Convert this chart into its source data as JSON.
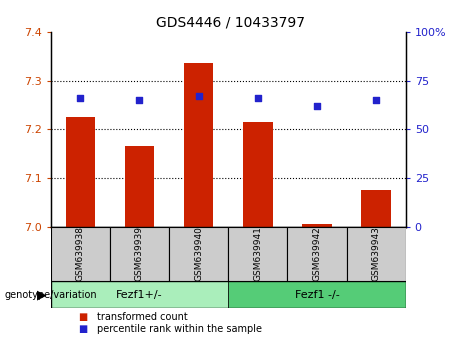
{
  "title": "GDS4446 / 10433797",
  "samples": [
    "GSM639938",
    "GSM639939",
    "GSM639940",
    "GSM639941",
    "GSM639942",
    "GSM639943"
  ],
  "bar_values": [
    7.225,
    7.165,
    7.335,
    7.215,
    7.005,
    7.075
  ],
  "percentile_values": [
    66,
    65,
    67,
    66,
    62,
    65
  ],
  "ylim_left": [
    7.0,
    7.4
  ],
  "ylim_right": [
    0,
    100
  ],
  "yticks_left": [
    7.0,
    7.1,
    7.2,
    7.3,
    7.4
  ],
  "yticks_right": [
    0,
    25,
    50,
    75,
    100
  ],
  "bar_color": "#cc2200",
  "dot_color": "#2222cc",
  "bar_base": 7.0,
  "groups": [
    {
      "label": "Fezf1+/-",
      "indices": [
        0,
        1,
        2
      ],
      "color": "#aaeebb"
    },
    {
      "label": "Fezf1 -/-",
      "indices": [
        3,
        4,
        5
      ],
      "color": "#55cc77"
    }
  ],
  "group_label": "genotype/variation",
  "legend_items": [
    {
      "label": "transformed count",
      "color": "#cc2200"
    },
    {
      "label": "percentile rank within the sample",
      "color": "#2222cc"
    }
  ],
  "tick_color_left": "#cc4400",
  "tick_color_right": "#2222cc",
  "bg_color": "#ffffff",
  "sample_box_color": "#cccccc",
  "grid_lines": [
    7.1,
    7.2,
    7.3
  ],
  "bar_width": 0.5
}
